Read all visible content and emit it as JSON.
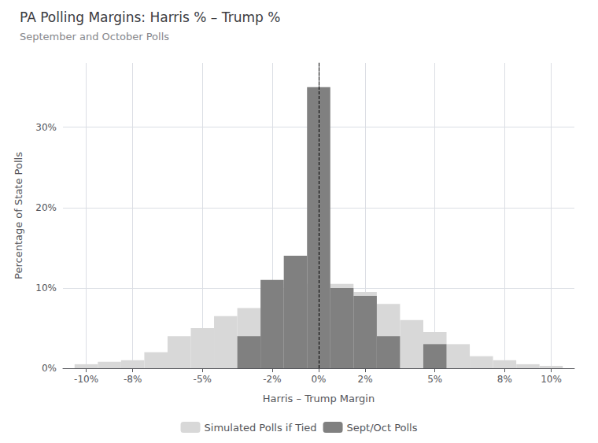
{
  "chart_data": {
    "type": "bar",
    "title": "PA Polling Margins: Harris % – Trump %",
    "subtitle": "September and October Polls",
    "xlabel": "Harris – Trump Margin",
    "ylabel": "Percentage of State Polls",
    "x": [
      -10,
      -9,
      -8,
      -7,
      -6,
      -5,
      -4,
      -3,
      -2,
      -1,
      0,
      1,
      2,
      3,
      4,
      5,
      6,
      7,
      8,
      9,
      10
    ],
    "bar_width": 1,
    "series": [
      {
        "name": "Simulated Polls if Tied",
        "color": "#d8d8d8",
        "values": [
          0.005,
          0.008,
          0.01,
          0.02,
          0.04,
          0.05,
          0.065,
          0.075,
          0.1,
          0.105,
          0.105,
          0.105,
          0.095,
          0.08,
          0.06,
          0.045,
          0.03,
          0.015,
          0.01,
          0.005,
          0.003
        ]
      },
      {
        "name": "Sept/Oct Polls",
        "color": "#808080",
        "values": [
          0,
          0,
          0,
          0,
          0,
          0,
          0,
          0.04,
          0.11,
          0.14,
          0.35,
          0.1,
          0.09,
          0.04,
          0,
          0.03,
          0,
          0,
          0,
          0,
          0
        ]
      }
    ],
    "vline": 0,
    "xlim": [
      -11,
      11
    ],
    "ylim": [
      0,
      0.38
    ],
    "xticks": [
      {
        "value": -10,
        "label": "-10%"
      },
      {
        "value": -8,
        "label": "-8%"
      },
      {
        "value": -5,
        "label": "-5%"
      },
      {
        "value": -2,
        "label": "-2%"
      },
      {
        "value": 0,
        "label": "0%"
      },
      {
        "value": 2,
        "label": "2%"
      },
      {
        "value": 5,
        "label": "5%"
      },
      {
        "value": 8,
        "label": "8%"
      },
      {
        "value": 10,
        "label": "10%"
      }
    ],
    "yticks": [
      {
        "value": 0,
        "label": "0%"
      },
      {
        "value": 0.1,
        "label": "10%"
      },
      {
        "value": 0.2,
        "label": "20%"
      },
      {
        "value": 0.3,
        "label": "30%"
      }
    ],
    "grid": true,
    "legend": "bottom"
  }
}
